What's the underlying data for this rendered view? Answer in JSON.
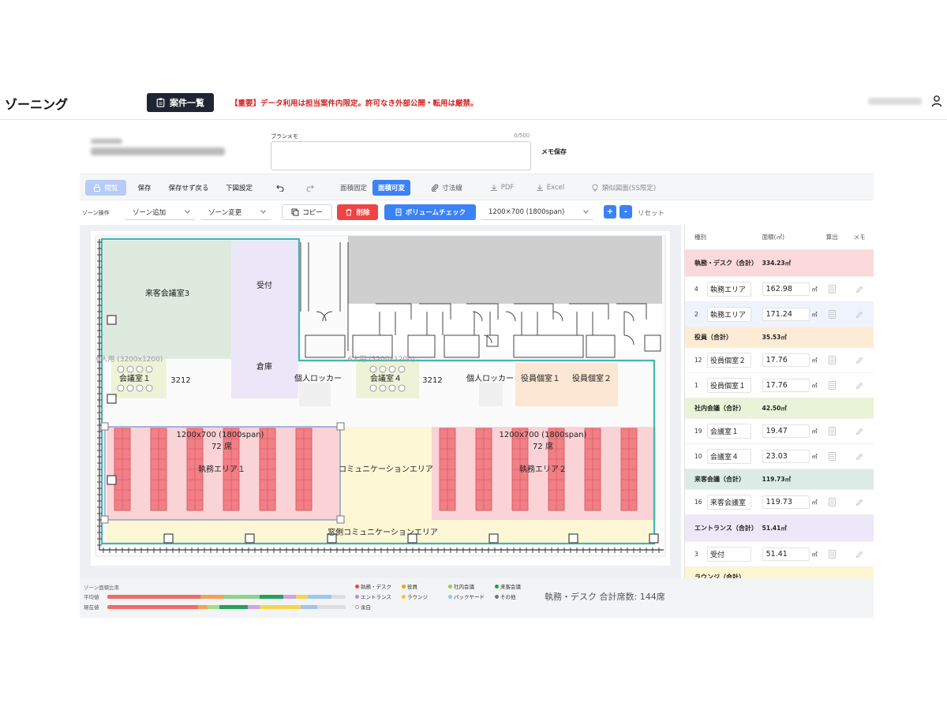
{
  "header": {
    "title": "ゾーニング",
    "case_list_label": "案件一覧",
    "notice": "【重要】データ利用は担当案件内限定。許可なき外部公開・転用は厳禁。"
  },
  "memo": {
    "label": "プランメモ",
    "count": "0/500",
    "value": "",
    "save_label": "メモ保存"
  },
  "toolbar1": {
    "view_label": "閲覧",
    "save_label": "保存",
    "save_exit_label": "保存せず戻る",
    "drawing_setting_label": "下図設定",
    "area_fixed_label": "面積固定",
    "area_variable_label": "面積可変",
    "dimension_label": "寸法線",
    "pdf_label": "PDF",
    "excel_label": "Excel",
    "similar_label": "類似図面(SS限定)"
  },
  "toolbar2": {
    "zone_ops_label": "ゾーン操作",
    "zone_add_label": "ゾーン追加",
    "zone_change_label": "ゾーン変更",
    "copy_label": "コピー",
    "delete_label": "削除",
    "volume_check_label": "ボリュームチェック",
    "desk_size_value": "1200×700 (1800span)",
    "plus_label": "+",
    "minus_label": "-",
    "reset_label": "リセット"
  },
  "plan": {
    "zones": {
      "guest_meeting_3": "来客会議室3",
      "reception": "受付",
      "storage": "倉庫",
      "meeting_1": "会議室１",
      "meeting_4": "会議室４",
      "locker_1": "個人ロッカー",
      "locker_2": "個人ロッカー",
      "exec_room_1": "役員個室１",
      "exec_room_2": "役員個室２",
      "dim_1": "3212",
      "dim_2": "3212",
      "meeting_size_1": "6人用 (3200x1200)",
      "meeting_size_2": "6人用 (3200x1200)",
      "work_area_1": "執務エリア１",
      "work_area_2": "執務エリア２",
      "work_spec_1": "1200x700 (1800span)",
      "work_spec_2": "1200x700 (1800span)",
      "work_seats_1": "72 席",
      "work_seats_2": "72 席",
      "comm_area": "コミュニケーションエリア",
      "window_comm_area": "窓側コミュニケーションエリア"
    }
  },
  "side_table": {
    "headers": {
      "type": "種別",
      "area": "面積(㎡)",
      "calc": "算出",
      "memo": "メモ"
    },
    "unit": "㎡",
    "rows": [
      {
        "kind": "cat",
        "label": "執務・デスク（合計）",
        "area": "334.23㎡",
        "color": "#fcd9da"
      },
      {
        "kind": "item",
        "no": "4",
        "name": "執務エリア",
        "area": "162.98",
        "color": "#ffffff"
      },
      {
        "kind": "item",
        "no": "2",
        "name": "執務エリア",
        "area": "171.24",
        "color": "#eef3fd"
      },
      {
        "kind": "cat",
        "label": "役員（合計）",
        "area": "35.53㎡",
        "color": "#fdebd5"
      },
      {
        "kind": "item",
        "no": "12",
        "name": "役員個室２",
        "area": "17.76",
        "color": "#ffffff"
      },
      {
        "kind": "item",
        "no": "1",
        "name": "役員個室１",
        "area": "17.76",
        "color": "#ffffff"
      },
      {
        "kind": "cat",
        "label": "社内会議（合計）",
        "area": "42.50㎡",
        "color": "#e8f3d8"
      },
      {
        "kind": "item",
        "no": "19",
        "name": "会議室１",
        "area": "19.47",
        "color": "#ffffff"
      },
      {
        "kind": "item",
        "no": "10",
        "name": "会議室４",
        "area": "23.03",
        "color": "#ffffff"
      },
      {
        "kind": "cat",
        "label": "来客会議（合計）",
        "area": "119.73㎡",
        "color": "#dcebe6"
      },
      {
        "kind": "item",
        "no": "16",
        "name": "来客会議室",
        "area": "119.73",
        "color": "#ffffff"
      },
      {
        "kind": "cat",
        "label": "エントランス（合計）",
        "area": "51.41㎡",
        "color": "#ece7f9"
      },
      {
        "kind": "item",
        "no": "3",
        "name": "受付",
        "area": "51.41",
        "color": "#ffffff"
      },
      {
        "kind": "cat",
        "label": "ラウンジ（合計）",
        "area": "",
        "color": "#fdf6d0"
      }
    ]
  },
  "footer": {
    "title": "ゾーン面積比率",
    "avg_label": "平均値",
    "current_label": "現在値",
    "avg_bar": [
      {
        "color": "#f06b6b",
        "pct": 39
      },
      {
        "color": "#f3a05a",
        "pct": 10
      },
      {
        "color": "#8fd18f",
        "pct": 15
      },
      {
        "color": "#27a05a",
        "pct": 10
      },
      {
        "color": "#c9a5e6",
        "pct": 5
      },
      {
        "color": "#f7d54a",
        "pct": 5
      },
      {
        "color": "#9ec5ee",
        "pct": 10
      },
      {
        "color": "#dddddd",
        "pct": 6
      }
    ],
    "current_bar": [
      {
        "color": "#f06b6b",
        "pct": 38
      },
      {
        "color": "#f3a05a",
        "pct": 4
      },
      {
        "color": "#a8dc8a",
        "pct": 5
      },
      {
        "color": "#27a05a",
        "pct": 12
      },
      {
        "color": "#c9a5e6",
        "pct": 5
      },
      {
        "color": "#f7d54a",
        "pct": 17
      },
      {
        "color": "#9ec5ee",
        "pct": 7
      },
      {
        "color": "#dddddd",
        "pct": 12
      }
    ],
    "legend": [
      {
        "label": "執務・デスク",
        "color": "#ef4444"
      },
      {
        "label": "役員",
        "color": "#f59e0b"
      },
      {
        "label": "社内会議",
        "color": "#9ccc3b"
      },
      {
        "label": "来客会議",
        "color": "#16a34a"
      },
      {
        "label": "エントランス",
        "color": "#b88be0"
      },
      {
        "label": "ラウンジ",
        "color": "#facc15"
      },
      {
        "label": "バックヤード",
        "color": "#93c5fd"
      },
      {
        "label": "その他",
        "color": "#6b7280"
      },
      {
        "label": "余白",
        "color": "#ffffff"
      }
    ],
    "seat_summary": "執務・デスク 合計席数: 144席"
  }
}
